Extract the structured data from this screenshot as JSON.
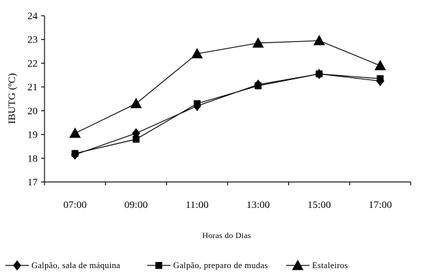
{
  "chart_data": {
    "type": "line",
    "categories": [
      "07:00",
      "09:00",
      "11:00",
      "13:00",
      "15:00",
      "17:00"
    ],
    "ylabel": "IBUTG (ºC)",
    "xlabel": "Horas do Dias",
    "ylim": [
      17,
      24
    ],
    "yticks": [
      "17",
      "18",
      "19",
      "20",
      "21",
      "22",
      "23",
      "24"
    ],
    "grid": false,
    "legend_position": "bottom",
    "series": [
      {
        "name": "Galpão, sala de máquina",
        "marker": "diamond",
        "color": "#000000",
        "values": [
          18.15,
          19.05,
          20.2,
          21.1,
          21.55,
          21.25
        ]
      },
      {
        "name": "Galpão, preparo de mudas",
        "marker": "square",
        "color": "#000000",
        "values": [
          18.2,
          18.8,
          20.3,
          21.05,
          21.55,
          21.35
        ]
      },
      {
        "name": "Estaleiros",
        "marker": "triangle",
        "color": "#000000",
        "values": [
          19.05,
          20.3,
          22.4,
          22.85,
          22.95,
          21.9
        ]
      }
    ]
  }
}
